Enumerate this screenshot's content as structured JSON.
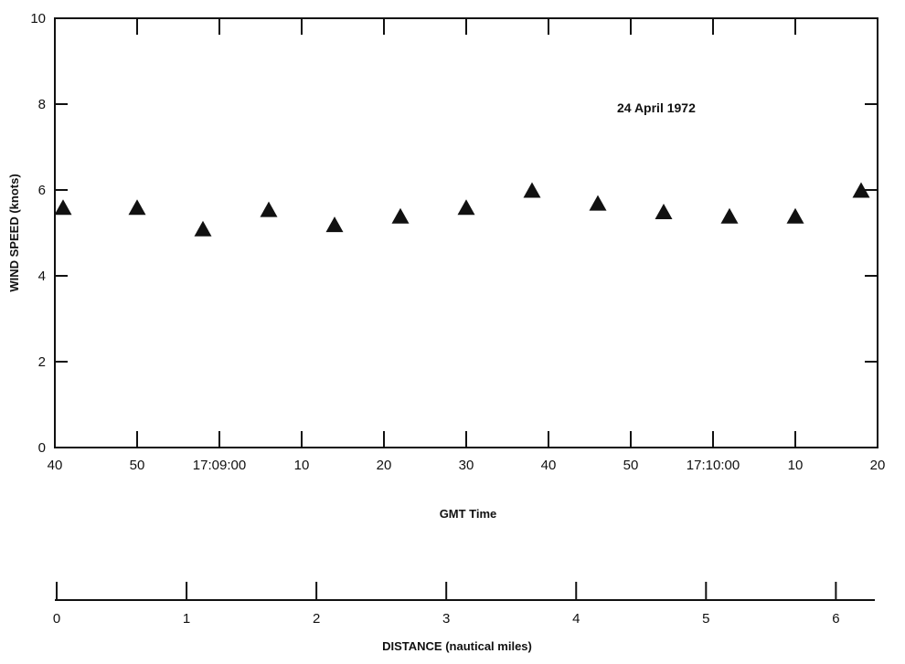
{
  "chart_data": {
    "type": "scatter",
    "title": "",
    "annotation": "24 April 1972",
    "ylabel": "WIND SPEED (knots)",
    "xlabel": "GMT Time",
    "ylim": [
      0,
      10
    ],
    "y_ticks": [
      "0",
      "2",
      "4",
      "6",
      "8",
      "10"
    ],
    "x_tick_labels": [
      "40",
      "50",
      "17:09:00",
      "10",
      "20",
      "30",
      "40",
      "50",
      "17:10:00",
      "10",
      "20"
    ],
    "x_range_seconds_after_17_08_40": [
      0,
      100
    ],
    "marker": "triangle",
    "series": [
      {
        "x": [
          "17:08:41",
          "17:08:50",
          "17:08:58",
          "17:09:06",
          "17:09:14",
          "17:09:22",
          "17:09:30",
          "17:09:38",
          "17:09:46",
          "17:09:54",
          "17:10:02",
          "17:10:10",
          "17:10:18"
        ],
        "values": [
          5.6,
          5.6,
          5.1,
          5.55,
          5.2,
          5.4,
          5.6,
          6.0,
          5.7,
          5.5,
          5.4,
          5.4,
          6.0
        ]
      }
    ],
    "grid": false,
    "secondary_axis": {
      "xlabel": "DISTANCE (nautical miles)",
      "ticks": [
        "0",
        "1",
        "2",
        "3",
        "4",
        "5",
        "6"
      ],
      "range": [
        0,
        6.3
      ]
    }
  }
}
